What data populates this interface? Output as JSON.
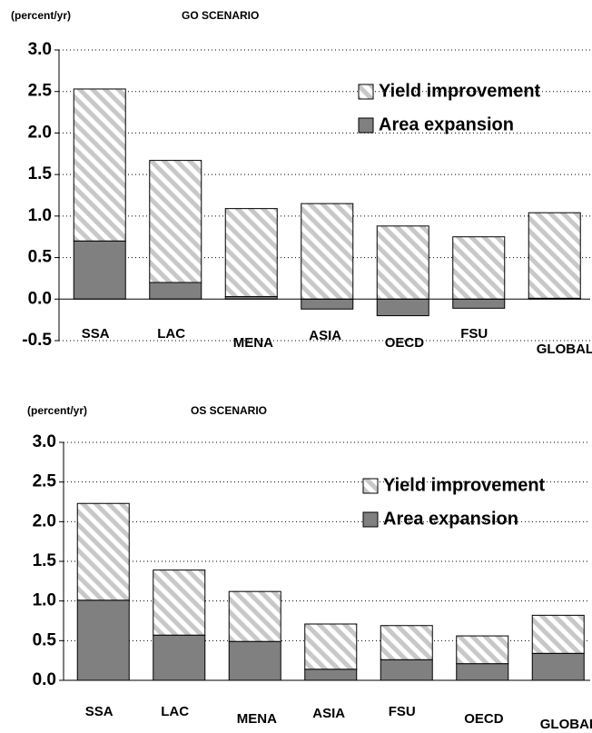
{
  "chart_data": [
    {
      "type": "bar",
      "stacked": true,
      "grid": true,
      "title": "GO SCENARIO",
      "y_label": "(percent/yr)",
      "categories": [
        "SSA",
        "LAC",
        "MENA",
        "ASIA",
        "OECD",
        "FSU",
        "GLOBAL"
      ],
      "series": [
        {
          "name": "Yield improvement",
          "color": "#c8c8c8",
          "values": [
            1.83,
            1.47,
            1.06,
            1.15,
            0.88,
            0.75,
            1.03
          ]
        },
        {
          "name": "Area expansion",
          "color": "#808080",
          "values": [
            0.7,
            0.2,
            0.03,
            -0.12,
            -0.2,
            -0.11,
            0.01
          ]
        }
      ],
      "ylim": [
        -0.5,
        3
      ],
      "yticks": [
        -0.5,
        {
          "value": 0,
          "label": "0.0"
        },
        0.5,
        {
          "value": 1,
          "label": "1.0"
        },
        1.5,
        {
          "value": 2,
          "label": "2.0"
        },
        2.5,
        {
          "value": 3,
          "label": "3.0"
        }
      ]
    },
    {
      "type": "bar",
      "stacked": true,
      "grid": true,
      "title": "OS SCENARIO",
      "y_label": "(percent/yr)",
      "categories": [
        "SSA",
        "LAC",
        "MENA",
        "ASIA",
        "FSU",
        "OECD",
        "GLOBAL"
      ],
      "series": [
        {
          "name": "Yield improvement",
          "color": "#c8c8c8",
          "values": [
            1.22,
            0.82,
            0.63,
            0.57,
            0.43,
            0.35,
            0.48
          ]
        },
        {
          "name": "Area expansion",
          "color": "#808080",
          "values": [
            1.01,
            0.57,
            0.49,
            0.14,
            0.26,
            0.21,
            0.34
          ]
        }
      ],
      "ylim": [
        0,
        3
      ],
      "yticks": [
        {
          "value": 0,
          "label": "0.0"
        },
        0.5,
        {
          "value": 1,
          "label": "1.0"
        },
        1.5,
        {
          "value": 2,
          "label": "2.0"
        },
        2.5,
        {
          "value": 3,
          "label": "3.0"
        }
      ]
    }
  ]
}
